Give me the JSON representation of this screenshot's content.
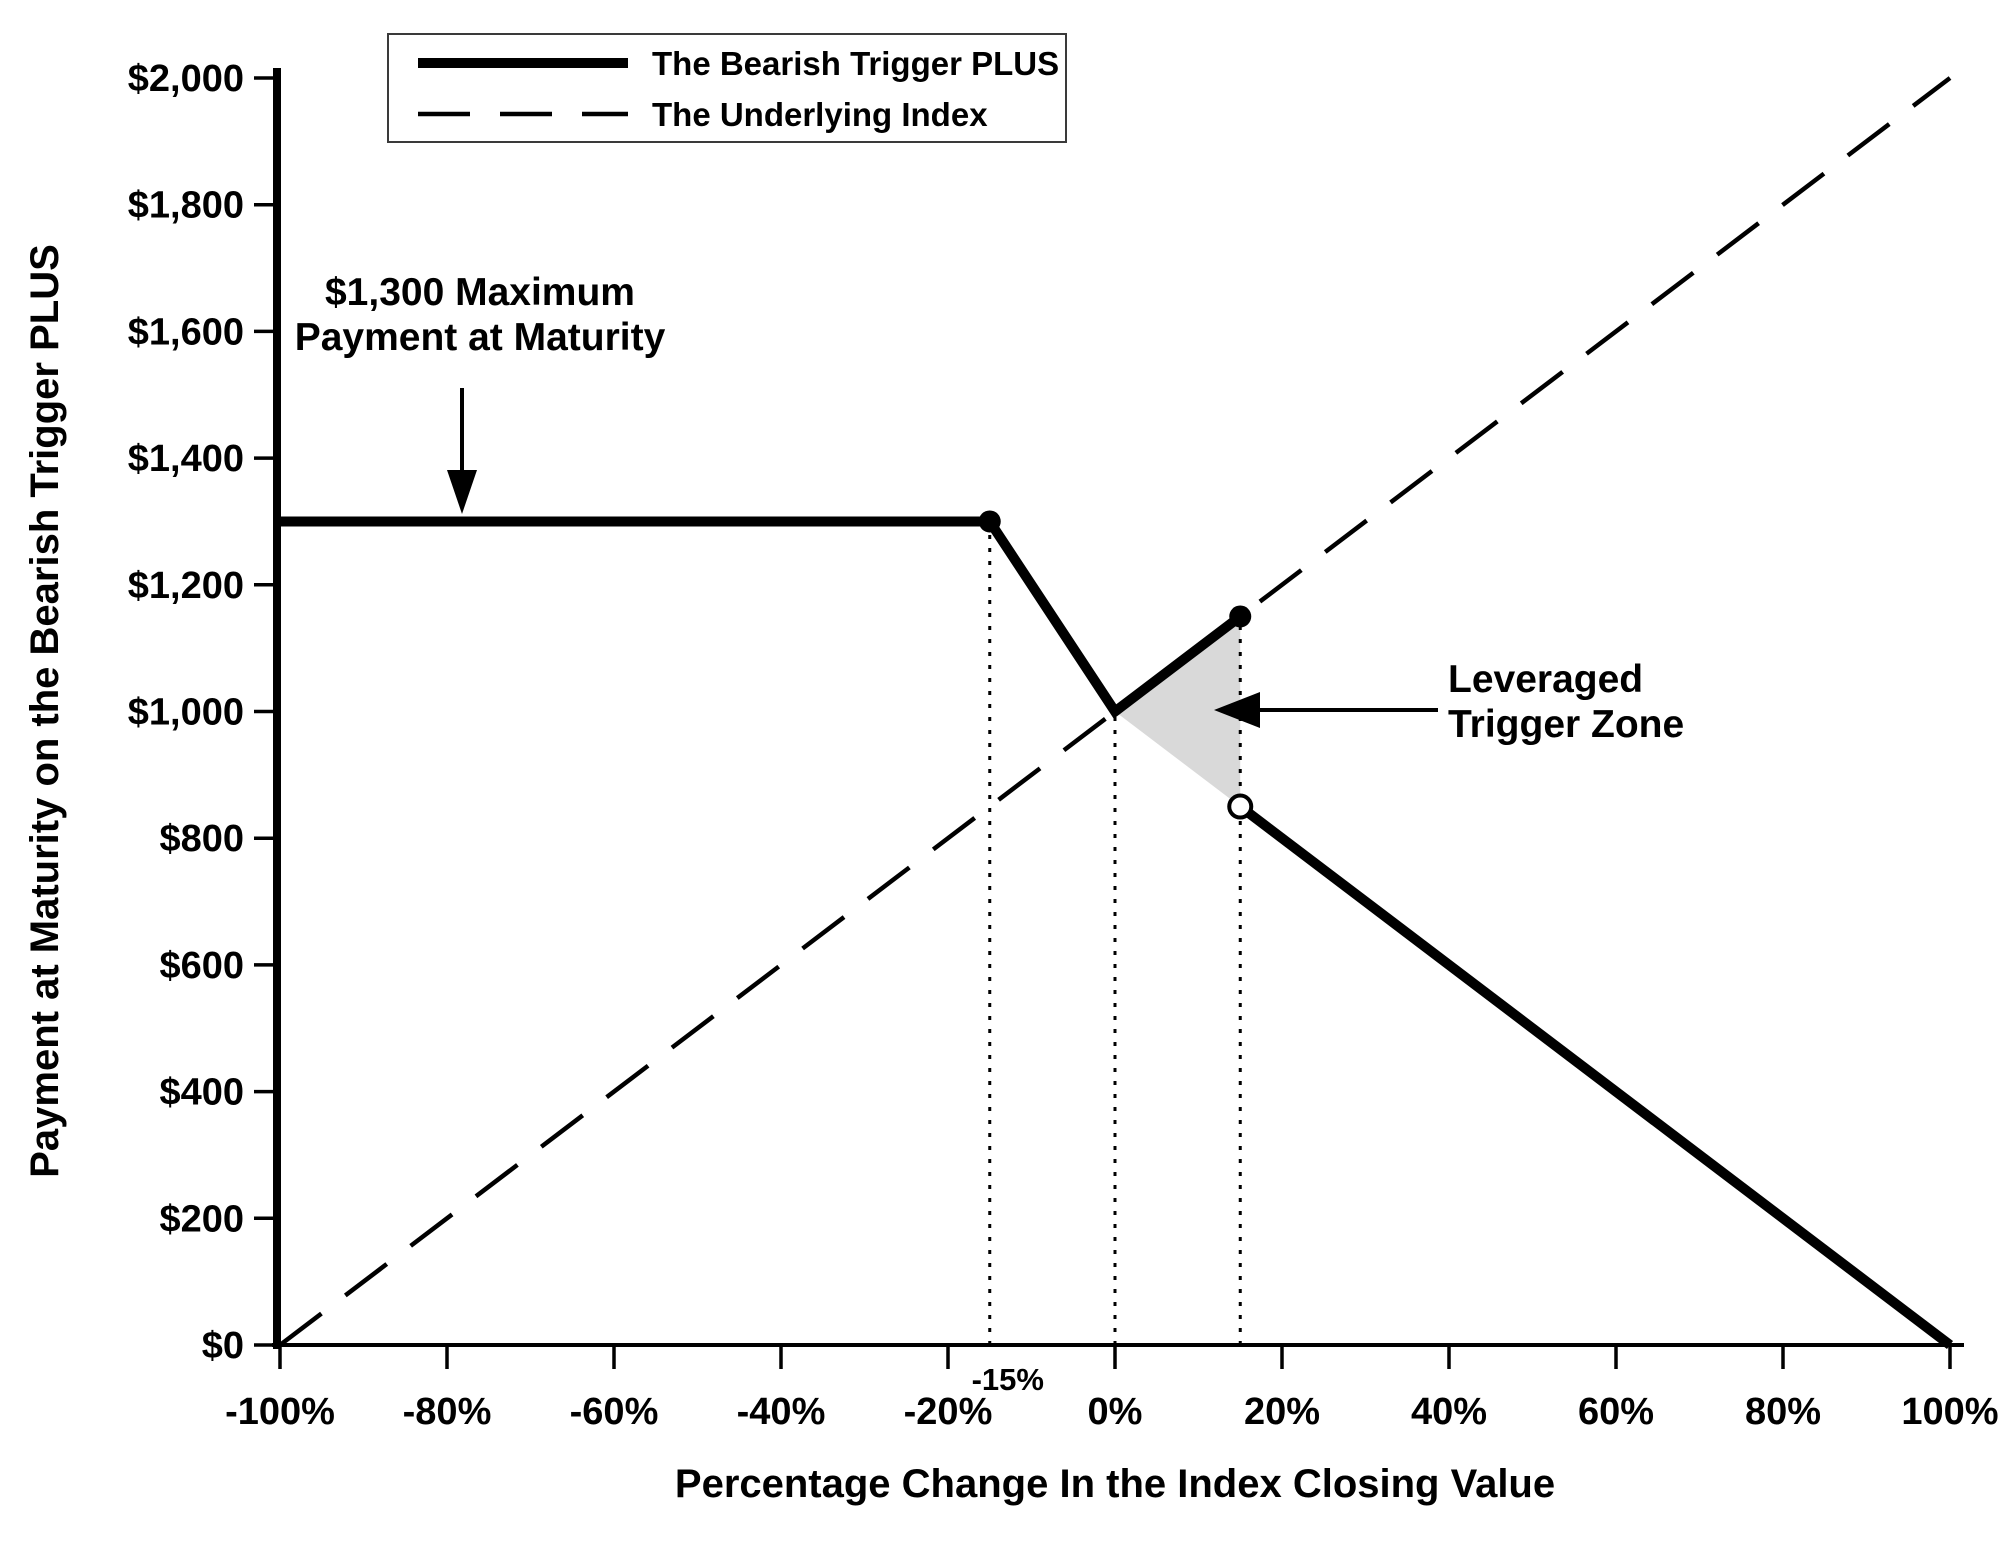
{
  "figure": {
    "background": "#ffffff",
    "line_color": "#000000",
    "shade_color": "#d9d9d9"
  },
  "chart_data": {
    "type": "line",
    "title": "",
    "xlabel": "Percentage Change In the Index Closing Value",
    "ylabel": "Payment at Maturity on the Bearish Trigger PLUS",
    "xlim": [
      -100,
      100
    ],
    "ylim": [
      0,
      2000
    ],
    "grid": false,
    "x_ticks": [
      {
        "value": -100,
        "label": "-100%"
      },
      {
        "value": -80,
        "label": "-80%"
      },
      {
        "value": -60,
        "label": "-60%"
      },
      {
        "value": -40,
        "label": "-40%"
      },
      {
        "value": -20,
        "label": "-20%"
      },
      {
        "value": 0,
        "label": "0%"
      },
      {
        "value": 20,
        "label": "20%"
      },
      {
        "value": 40,
        "label": "40%"
      },
      {
        "value": 60,
        "label": "60%"
      },
      {
        "value": 80,
        "label": "80%"
      },
      {
        "value": 100,
        "label": "100%"
      }
    ],
    "special_x_tick": {
      "value": -15,
      "label": "-15%"
    },
    "y_ticks": [
      {
        "value": 0,
        "label": "$0"
      },
      {
        "value": 200,
        "label": "$200"
      },
      {
        "value": 400,
        "label": "$400"
      },
      {
        "value": 600,
        "label": "$600"
      },
      {
        "value": 800,
        "label": "$800"
      },
      {
        "value": 1000,
        "label": "$1,000"
      },
      {
        "value": 1200,
        "label": "$1,200"
      },
      {
        "value": 1400,
        "label": "$1,400"
      },
      {
        "value": 1600,
        "label": "$1,600"
      },
      {
        "value": 1800,
        "label": "$1,800"
      },
      {
        "value": 2000,
        "label": "$2,000"
      }
    ],
    "series": [
      {
        "name": "The Bearish Trigger PLUS",
        "style": "solid-thick",
        "segments": [
          [
            [
              -100,
              1300
            ],
            [
              -15,
              1300
            ],
            [
              0,
              1000
            ],
            [
              15,
              1150
            ]
          ],
          [
            [
              15,
              850
            ],
            [
              100,
              0
            ]
          ]
        ]
      },
      {
        "name": "The Underlying Index",
        "style": "dashed",
        "segments": [
          [
            [
              -100,
              0
            ],
            [
              100,
              2000
            ]
          ]
        ]
      }
    ],
    "markers": [
      {
        "x": -15,
        "y": 1300,
        "style": "filled"
      },
      {
        "x": 15,
        "y": 1150,
        "style": "filled"
      },
      {
        "x": 15,
        "y": 850,
        "style": "open"
      }
    ],
    "dotted_guides": [
      {
        "x": -15,
        "top": 1300
      },
      {
        "x": 0,
        "top": 1000
      },
      {
        "x": 15,
        "top": 1150
      }
    ],
    "shaded_region": {
      "points": [
        [
          0,
          1000
        ],
        [
          15,
          1150
        ],
        [
          15,
          850
        ]
      ],
      "color": "#d9d9d9"
    },
    "legend": {
      "position": "top-left",
      "items": [
        {
          "label": "The Bearish Trigger PLUS",
          "style": "solid-thick"
        },
        {
          "label": "The Underlying Index",
          "style": "dashed"
        }
      ]
    },
    "annotations": [
      {
        "id": "max-payment",
        "lines": [
          "$1,300 Maximum",
          "Payment at Maturity"
        ],
        "arrow": "down"
      },
      {
        "id": "leveraged-trigger-zone",
        "lines": [
          "Leveraged",
          "Trigger Zone"
        ],
        "arrow": "left"
      }
    ]
  }
}
